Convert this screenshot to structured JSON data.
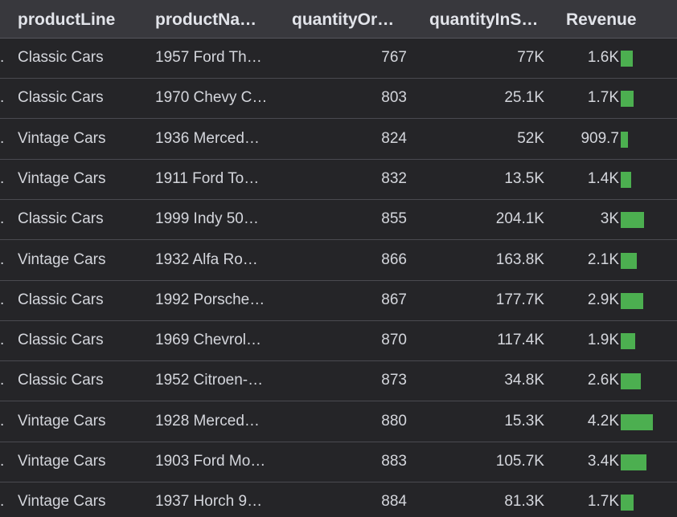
{
  "columns": {
    "product_line": "productLine",
    "product_name": "productNa…",
    "quantity_ordered": "quantityOr…",
    "quantity_in_stock": "quantityInS…",
    "revenue": "Revenue"
  },
  "colors": {
    "background": "#252528",
    "header_background": "#38383d",
    "bar": "#4caf50",
    "text": "#d4d6dc"
  },
  "rows": [
    {
      "marker": ".",
      "product_line": "Classic Cars",
      "product_name": "1957 Ford Th…",
      "quantity_ordered": "767",
      "quantity_in_stock": "77K",
      "revenue": "1.6K",
      "revenue_value": 1600
    },
    {
      "marker": ".",
      "product_line": "Classic Cars",
      "product_name": "1970 Chevy C…",
      "quantity_ordered": "803",
      "quantity_in_stock": "25.1K",
      "revenue": "1.7K",
      "revenue_value": 1700
    },
    {
      "marker": ".",
      "product_line": "Vintage Cars",
      "product_name": "1936 Merced…",
      "quantity_ordered": "824",
      "quantity_in_stock": "52K",
      "revenue": "909.7",
      "revenue_value": 909.7
    },
    {
      "marker": ".",
      "product_line": "Vintage Cars",
      "product_name": "1911 Ford To…",
      "quantity_ordered": "832",
      "quantity_in_stock": "13.5K",
      "revenue": "1.4K",
      "revenue_value": 1400
    },
    {
      "marker": ".",
      "product_line": "Classic Cars",
      "product_name": "1999 Indy 50…",
      "quantity_ordered": "855",
      "quantity_in_stock": "204.1K",
      "revenue": "3K",
      "revenue_value": 3000
    },
    {
      "marker": ".",
      "product_line": "Vintage Cars",
      "product_name": "1932 Alfa Ro…",
      "quantity_ordered": "866",
      "quantity_in_stock": "163.8K",
      "revenue": "2.1K",
      "revenue_value": 2100
    },
    {
      "marker": ".",
      "product_line": "Classic Cars",
      "product_name": "1992 Porsche…",
      "quantity_ordered": "867",
      "quantity_in_stock": "177.7K",
      "revenue": "2.9K",
      "revenue_value": 2900
    },
    {
      "marker": ".",
      "product_line": "Classic Cars",
      "product_name": "1969 Chevrol…",
      "quantity_ordered": "870",
      "quantity_in_stock": "117.4K",
      "revenue": "1.9K",
      "revenue_value": 1900
    },
    {
      "marker": ".",
      "product_line": "Classic Cars",
      "product_name": "1952 Citroen-…",
      "quantity_ordered": "873",
      "quantity_in_stock": "34.8K",
      "revenue": "2.6K",
      "revenue_value": 2600
    },
    {
      "marker": ".",
      "product_line": "Vintage Cars",
      "product_name": "1928 Merced…",
      "quantity_ordered": "880",
      "quantity_in_stock": "15.3K",
      "revenue": "4.2K",
      "revenue_value": 4200
    },
    {
      "marker": ".",
      "product_line": "Vintage Cars",
      "product_name": "1903 Ford Mo…",
      "quantity_ordered": "883",
      "quantity_in_stock": "105.7K",
      "revenue": "3.4K",
      "revenue_value": 3400
    },
    {
      "marker": ".",
      "product_line": "Vintage Cars",
      "product_name": "1937 Horch 9…",
      "quantity_ordered": "884",
      "quantity_in_stock": "81.3K",
      "revenue": "1.7K",
      "revenue_value": 1700
    }
  ]
}
